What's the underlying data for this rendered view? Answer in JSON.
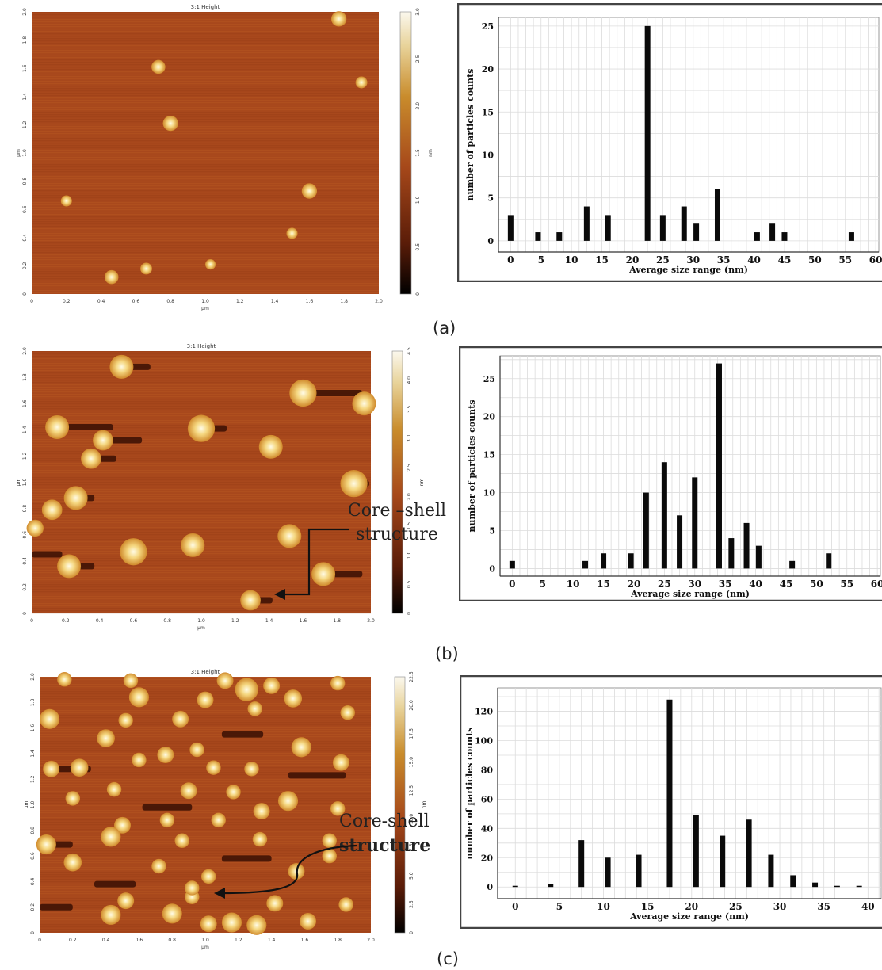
{
  "panels": [
    {
      "label": "(a)",
      "afm": {
        "title": "3:1 Height",
        "x_unit": "µm",
        "y_unit": "µm",
        "x_ticks": [
          "0",
          "0.2",
          "0.4",
          "0.6",
          "0.8",
          "1.0",
          "1.2",
          "1.4",
          "1.6",
          "1.8",
          "2.0"
        ],
        "y_ticks": [
          "0",
          "0.2",
          "0.4",
          "0.6",
          "0.8",
          "1.0",
          "1.2",
          "1.4",
          "1.6",
          "1.8",
          "2.0"
        ],
        "colorbar_ticks": [
          "0",
          "0.5",
          "1.0",
          "1.5",
          "2.0",
          "2.5",
          "3.0"
        ],
        "colorbar_unit": "nm",
        "particles": [
          {
            "x": 0.46,
            "y": 0.12,
            "r": 0.02
          },
          {
            "x": 0.66,
            "y": 0.18,
            "r": 0.017
          },
          {
            "x": 1.03,
            "y": 0.21,
            "r": 0.015
          },
          {
            "x": 1.5,
            "y": 0.43,
            "r": 0.016
          },
          {
            "x": 0.2,
            "y": 0.66,
            "r": 0.016
          },
          {
            "x": 1.6,
            "y": 0.73,
            "r": 0.022
          },
          {
            "x": 0.8,
            "y": 1.21,
            "r": 0.022
          },
          {
            "x": 0.73,
            "y": 1.61,
            "r": 0.02
          },
          {
            "x": 1.77,
            "y": 1.95,
            "r": 0.022
          },
          {
            "x": 1.9,
            "y": 1.5,
            "r": 0.017
          }
        ],
        "dark_streaks": []
      },
      "annotation": null
    },
    {
      "label": "(b)",
      "afm": {
        "title": "3:1 Height",
        "x_unit": "µm",
        "y_unit": "µm",
        "x_ticks": [
          "0",
          "0.2",
          "0.4",
          "0.6",
          "0.8",
          "1.0",
          "1.2",
          "1.4",
          "1.6",
          "1.8",
          "2.0"
        ],
        "y_ticks": [
          "0",
          "0.2",
          "0.4",
          "0.6",
          "0.8",
          "1.0",
          "1.2",
          "1.4",
          "1.6",
          "1.8",
          "2.0"
        ],
        "colorbar_ticks": [
          "0",
          "0.5",
          "1.0",
          "1.5",
          "2.0",
          "2.5",
          "3.0",
          "3.5",
          "4.0",
          "4.5"
        ],
        "colorbar_unit": "nm",
        "particles": [
          {
            "x": 0.53,
            "y": 1.88,
            "r": 0.035
          },
          {
            "x": 1.6,
            "y": 1.68,
            "r": 0.04
          },
          {
            "x": 1.96,
            "y": 1.6,
            "r": 0.035
          },
          {
            "x": 0.15,
            "y": 1.42,
            "r": 0.035
          },
          {
            "x": 0.42,
            "y": 1.32,
            "r": 0.03
          },
          {
            "x": 1.0,
            "y": 1.41,
            "r": 0.04
          },
          {
            "x": 1.41,
            "y": 1.27,
            "r": 0.035
          },
          {
            "x": 0.35,
            "y": 1.18,
            "r": 0.03
          },
          {
            "x": 1.9,
            "y": 0.99,
            "r": 0.04
          },
          {
            "x": 0.26,
            "y": 0.88,
            "r": 0.035
          },
          {
            "x": 0.12,
            "y": 0.79,
            "r": 0.03
          },
          {
            "x": 1.52,
            "y": 0.59,
            "r": 0.035
          },
          {
            "x": 0.95,
            "y": 0.52,
            "r": 0.035
          },
          {
            "x": 0.6,
            "y": 0.47,
            "r": 0.04
          },
          {
            "x": 0.22,
            "y": 0.36,
            "r": 0.035
          },
          {
            "x": 1.72,
            "y": 0.3,
            "r": 0.035
          },
          {
            "x": 1.29,
            "y": 0.1,
            "r": 0.03
          },
          {
            "x": 0.02,
            "y": 0.65,
            "r": 0.025
          }
        ],
        "dark_streaks": [
          {
            "x": 0.56,
            "y": 1.88,
            "w": 0.14
          },
          {
            "x": 1.63,
            "y": 1.68,
            "w": 0.32
          },
          {
            "x": 0.45,
            "y": 1.32,
            "w": 0.2
          },
          {
            "x": 0.18,
            "y": 1.42,
            "w": 0.3
          },
          {
            "x": 1.03,
            "y": 1.41,
            "w": 0.12
          },
          {
            "x": 0.38,
            "y": 1.18,
            "w": 0.12
          },
          {
            "x": 1.93,
            "y": 0.99,
            "w": 0.06
          },
          {
            "x": 0.29,
            "y": 0.88,
            "w": 0.08
          },
          {
            "x": 0.25,
            "y": 0.36,
            "w": 0.12
          },
          {
            "x": 1.75,
            "y": 0.3,
            "w": 0.2
          },
          {
            "x": 1.32,
            "y": 0.1,
            "w": 0.1
          },
          {
            "x": 0.0,
            "y": 0.45,
            "w": 0.18
          }
        ]
      },
      "annotation": {
        "line1": "Core –shell",
        "line2": "structure"
      }
    },
    {
      "label": "(c)",
      "afm": {
        "title": "3:1 Height",
        "x_unit": "µm",
        "y_unit": "µm",
        "x_ticks": [
          "0",
          "0.2",
          "0.4",
          "0.6",
          "0.8",
          "1.0",
          "1.2",
          "1.4",
          "1.6",
          "1.8",
          "2.0"
        ],
        "y_ticks": [
          "0",
          "0.2",
          "0.4",
          "0.6",
          "0.8",
          "1.0",
          "1.2",
          "1.4",
          "1.6",
          "1.8",
          "2.0"
        ],
        "colorbar_ticks": [
          "0",
          "2.5",
          "5.0",
          "7.5",
          "10.0",
          "12.5",
          "15.0",
          "17.5",
          "20.0",
          "22.5"
        ],
        "colorbar_unit": "nm",
        "particles": [
          {
            "x": 0.15,
            "y": 1.98,
            "r": 0.022
          },
          {
            "x": 0.55,
            "y": 1.97,
            "r": 0.022
          },
          {
            "x": 1.12,
            "y": 1.97,
            "r": 0.025
          },
          {
            "x": 1.4,
            "y": 1.93,
            "r": 0.025
          },
          {
            "x": 1.8,
            "y": 1.95,
            "r": 0.022
          },
          {
            "x": 0.6,
            "y": 1.84,
            "r": 0.03
          },
          {
            "x": 1.0,
            "y": 1.82,
            "r": 0.025
          },
          {
            "x": 1.25,
            "y": 1.9,
            "r": 0.035
          },
          {
            "x": 1.53,
            "y": 1.83,
            "r": 0.027
          },
          {
            "x": 0.06,
            "y": 1.67,
            "r": 0.03
          },
          {
            "x": 0.52,
            "y": 1.66,
            "r": 0.022
          },
          {
            "x": 0.85,
            "y": 1.67,
            "r": 0.025
          },
          {
            "x": 1.3,
            "y": 1.75,
            "r": 0.022
          },
          {
            "x": 1.86,
            "y": 1.72,
            "r": 0.022
          },
          {
            "x": 0.4,
            "y": 1.52,
            "r": 0.027
          },
          {
            "x": 0.76,
            "y": 1.39,
            "r": 0.025
          },
          {
            "x": 0.95,
            "y": 1.43,
            "r": 0.022
          },
          {
            "x": 1.58,
            "y": 1.45,
            "r": 0.03
          },
          {
            "x": 0.07,
            "y": 1.28,
            "r": 0.025
          },
          {
            "x": 0.24,
            "y": 1.29,
            "r": 0.027
          },
          {
            "x": 0.6,
            "y": 1.35,
            "r": 0.022
          },
          {
            "x": 1.05,
            "y": 1.29,
            "r": 0.022
          },
          {
            "x": 1.28,
            "y": 1.28,
            "r": 0.022
          },
          {
            "x": 1.82,
            "y": 1.33,
            "r": 0.025
          },
          {
            "x": 0.2,
            "y": 1.05,
            "r": 0.022
          },
          {
            "x": 0.45,
            "y": 1.12,
            "r": 0.022
          },
          {
            "x": 0.9,
            "y": 1.11,
            "r": 0.025
          },
          {
            "x": 1.17,
            "y": 1.1,
            "r": 0.022
          },
          {
            "x": 1.5,
            "y": 1.03,
            "r": 0.03
          },
          {
            "x": 0.5,
            "y": 0.84,
            "r": 0.025
          },
          {
            "x": 0.77,
            "y": 0.88,
            "r": 0.022
          },
          {
            "x": 1.08,
            "y": 0.88,
            "r": 0.022
          },
          {
            "x": 1.34,
            "y": 0.95,
            "r": 0.025
          },
          {
            "x": 1.8,
            "y": 0.97,
            "r": 0.022
          },
          {
            "x": 0.04,
            "y": 0.69,
            "r": 0.03
          },
          {
            "x": 0.43,
            "y": 0.75,
            "r": 0.03
          },
          {
            "x": 0.86,
            "y": 0.72,
            "r": 0.022
          },
          {
            "x": 1.33,
            "y": 0.73,
            "r": 0.022
          },
          {
            "x": 1.75,
            "y": 0.72,
            "r": 0.022
          },
          {
            "x": 0.2,
            "y": 0.55,
            "r": 0.027
          },
          {
            "x": 0.72,
            "y": 0.52,
            "r": 0.022
          },
          {
            "x": 1.02,
            "y": 0.44,
            "r": 0.022
          },
          {
            "x": 1.55,
            "y": 0.48,
            "r": 0.025
          },
          {
            "x": 0.52,
            "y": 0.25,
            "r": 0.025
          },
          {
            "x": 0.92,
            "y": 0.28,
            "r": 0.022
          },
          {
            "x": 1.42,
            "y": 0.23,
            "r": 0.025
          },
          {
            "x": 1.85,
            "y": 0.22,
            "r": 0.022
          },
          {
            "x": 0.43,
            "y": 0.14,
            "r": 0.03
          },
          {
            "x": 0.8,
            "y": 0.15,
            "r": 0.03
          },
          {
            "x": 1.02,
            "y": 0.07,
            "r": 0.025
          },
          {
            "x": 1.16,
            "y": 0.08,
            "r": 0.03
          },
          {
            "x": 1.31,
            "y": 0.06,
            "r": 0.03
          },
          {
            "x": 1.62,
            "y": 0.09,
            "r": 0.025
          },
          {
            "x": 0.92,
            "y": 0.35,
            "r": 0.022
          },
          {
            "x": 1.75,
            "y": 0.6,
            "r": 0.022
          }
        ],
        "dark_streaks": [
          {
            "x": 0.09,
            "y": 1.28,
            "w": 0.22
          },
          {
            "x": 0.06,
            "y": 0.69,
            "w": 0.14
          },
          {
            "x": 0.62,
            "y": 0.98,
            "w": 0.3
          },
          {
            "x": 1.1,
            "y": 1.55,
            "w": 0.25
          },
          {
            "x": 1.5,
            "y": 1.23,
            "w": 0.35
          },
          {
            "x": 0.33,
            "y": 0.38,
            "w": 0.25
          },
          {
            "x": 1.1,
            "y": 0.58,
            "w": 0.3
          },
          {
            "x": 0.0,
            "y": 0.2,
            "w": 0.2
          }
        ]
      },
      "annotation": {
        "line1": "Core-shell",
        "line2": "structure"
      }
    }
  ],
  "chart_data": [
    {
      "type": "bar",
      "title": "",
      "xlabel": "Average size range (nm)",
      "ylabel": "number of particles counts",
      "x_ticks": [
        0,
        5,
        10,
        15,
        20,
        25,
        30,
        35,
        40,
        45,
        50,
        55,
        60
      ],
      "y_ticks": [
        0,
        5,
        10,
        15,
        20,
        25
      ],
      "xlim": [
        -2,
        60.5
      ],
      "ylim": [
        -1.3,
        26
      ],
      "grid": true,
      "x": [
        0,
        4.5,
        8,
        12.5,
        16,
        22.5,
        25,
        28.5,
        30.5,
        34,
        40.5,
        43,
        45,
        56
      ],
      "values": [
        3,
        1,
        1,
        4,
        3,
        25,
        3,
        4,
        2,
        6,
        1,
        2,
        1,
        1
      ]
    },
    {
      "type": "bar",
      "title": "",
      "xlabel": "Average size range (nm)",
      "ylabel": "number of particles counts",
      "x_ticks": [
        0,
        5,
        10,
        15,
        20,
        25,
        30,
        35,
        40,
        45,
        50,
        55,
        60
      ],
      "y_ticks": [
        0,
        5,
        10,
        15,
        20,
        25
      ],
      "xlim": [
        -2,
        60.5
      ],
      "ylim": [
        -1,
        28
      ],
      "grid": true,
      "x": [
        0,
        12,
        15,
        19.5,
        22,
        25,
        27.5,
        30,
        34,
        36,
        38.5,
        40.5,
        46,
        52
      ],
      "values": [
        1,
        1,
        2,
        2,
        10,
        14,
        7,
        12,
        27,
        4,
        6,
        3,
        1,
        2
      ]
    },
    {
      "type": "bar",
      "title": "",
      "xlabel": "Average size range (nm)",
      "ylabel": "number of particles counts",
      "x_ticks": [
        0,
        5,
        10,
        15,
        20,
        25,
        30,
        35,
        40
      ],
      "y_ticks": [
        0,
        20,
        40,
        60,
        80,
        100,
        120
      ],
      "xlim": [
        -2,
        41.5
      ],
      "ylim": [
        -8,
        136
      ],
      "grid": true,
      "x": [
        0,
        4,
        7.5,
        10.5,
        14,
        17.5,
        20.5,
        23.5,
        26.5,
        29,
        31.5,
        34,
        36.5,
        39
      ],
      "values": [
        0,
        2,
        32,
        20,
        22,
        128,
        49,
        35,
        46,
        22,
        8,
        3,
        0,
        0
      ]
    }
  ]
}
